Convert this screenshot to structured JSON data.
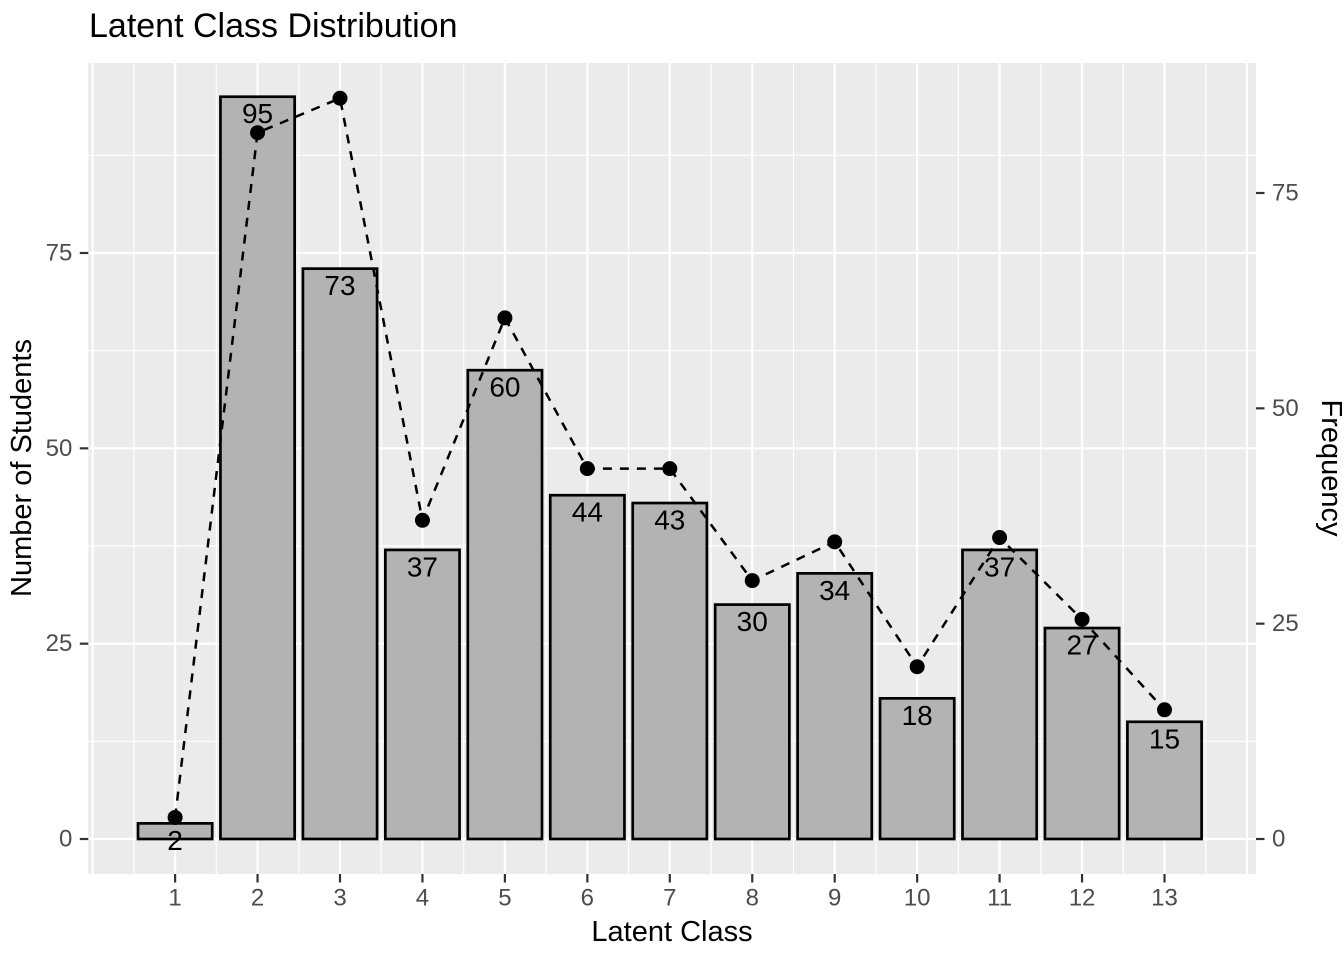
{
  "chart_data": {
    "type": "bar",
    "title": "Latent Class Distribution",
    "xlabel": "Latent Class",
    "ylabel": "Number of Students",
    "ylabel_right": "Frequency",
    "categories": [
      1,
      2,
      3,
      4,
      5,
      6,
      7,
      8,
      9,
      10,
      11,
      12,
      13
    ],
    "series": [
      {
        "name": "Number of Students",
        "type": "bar",
        "axis": "left",
        "values": [
          2,
          95,
          73,
          37,
          60,
          44,
          43,
          30,
          34,
          18,
          37,
          27,
          15
        ],
        "bar_value_labels": [
          "2",
          "95",
          "73",
          "37",
          "60",
          "44",
          "43",
          "30",
          "34",
          "18",
          "37",
          "27",
          "15"
        ]
      },
      {
        "name": "Frequency",
        "type": "line",
        "axis": "right",
        "line_style": "dashed",
        "marker": "filled-circle",
        "values": [
          2.5,
          82,
          86,
          37,
          60.5,
          43,
          43,
          30,
          34.5,
          20,
          35,
          25.5,
          15
        ]
      }
    ],
    "axes": {
      "left": {
        "label": "Number of Students",
        "ticks": [
          0,
          25,
          50,
          75
        ],
        "range": [
          -4.5,
          99.4
        ]
      },
      "right": {
        "label": "Frequency",
        "ticks": [
          0,
          25,
          50,
          75
        ],
        "range": [
          -4.1,
          90.1
        ]
      },
      "x": {
        "label": "Latent Class",
        "ticks": [
          1,
          2,
          3,
          4,
          5,
          6,
          7,
          8,
          9,
          10,
          11,
          12,
          13
        ]
      }
    },
    "grid": {
      "major": true,
      "minor": true,
      "gridline_color": "#FFFFFF"
    },
    "legend": "none",
    "colors": {
      "page_bg": "#FFFFFF",
      "panel_bg": "#EBEBEB",
      "bar_fill": "#B3B3B3",
      "bar_stroke": "#000000",
      "line": "#000000",
      "point": "#000000",
      "tick_mark": "#333333",
      "tick_label": "#4D4D4D",
      "title_text": "#000000"
    }
  }
}
